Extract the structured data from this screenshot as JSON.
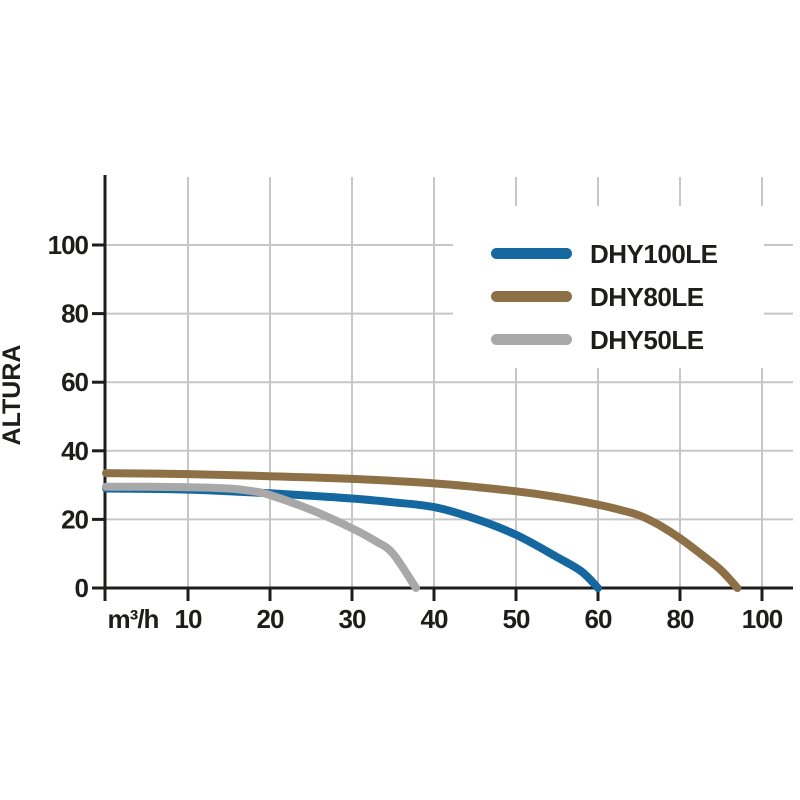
{
  "chart_data": {
    "type": "line",
    "title": "",
    "xlabel": "m³/h",
    "ylabel": "ALTURA",
    "x_ticks": [
      10,
      20,
      30,
      40,
      50,
      60,
      80,
      100
    ],
    "y_ticks": [
      0,
      20,
      40,
      60,
      80,
      100
    ],
    "ylim": [
      0,
      120
    ],
    "xlim": [
      0,
      104
    ],
    "x_scale_note": "ticks evenly spaced on screen: 10 m3/h per division up to 60, then 20 per division for 80 and 100",
    "grid": true,
    "legend_position": "upper-right white box over grid",
    "series": [
      {
        "name": "DHY100LE",
        "color": "#15689f",
        "points": [
          [
            0,
            29
          ],
          [
            5,
            28.9
          ],
          [
            10,
            28.7
          ],
          [
            15,
            28.2
          ],
          [
            20,
            27.6
          ],
          [
            25,
            26.9
          ],
          [
            30,
            26.1
          ],
          [
            35,
            25.0
          ],
          [
            40,
            23.6
          ],
          [
            45,
            20.2
          ],
          [
            50,
            15.5
          ],
          [
            55,
            9.0
          ],
          [
            58,
            4.8
          ],
          [
            60,
            0
          ]
        ]
      },
      {
        "name": "DHY80LE",
        "color": "#8d7045",
        "points": [
          [
            0,
            33.5
          ],
          [
            10,
            33.2
          ],
          [
            20,
            32.6
          ],
          [
            30,
            31.8
          ],
          [
            40,
            30.5
          ],
          [
            50,
            28.2
          ],
          [
            55,
            26.5
          ],
          [
            60,
            24.3
          ],
          [
            65,
            22.9
          ],
          [
            70,
            21.2
          ],
          [
            75,
            18.3
          ],
          [
            80,
            14.5
          ],
          [
            85,
            10.0
          ],
          [
            90,
            5.2
          ],
          [
            94,
            0
          ]
        ]
      },
      {
        "name": "DHY50LE",
        "color": "#a8a8a8",
        "points": [
          [
            0,
            29.5
          ],
          [
            5,
            29.5
          ],
          [
            10,
            29.4
          ],
          [
            15,
            29.0
          ],
          [
            18,
            28.2
          ],
          [
            20,
            27.1
          ],
          [
            25,
            22.8
          ],
          [
            30,
            17.4
          ],
          [
            33,
            13.5
          ],
          [
            35,
            10.0
          ],
          [
            37.8,
            0
          ]
        ]
      }
    ]
  },
  "legend": {
    "items": [
      {
        "label": "DHY100LE",
        "color": "#15689f"
      },
      {
        "label": "DHY80LE",
        "color": "#8d7045"
      },
      {
        "label": "DHY50LE",
        "color": "#a8a8a8"
      }
    ]
  },
  "colors": {
    "background": "#ffffff",
    "grid": "#c7c7c7",
    "axis": "#1d1d1b",
    "text": "#1d1d1b"
  }
}
